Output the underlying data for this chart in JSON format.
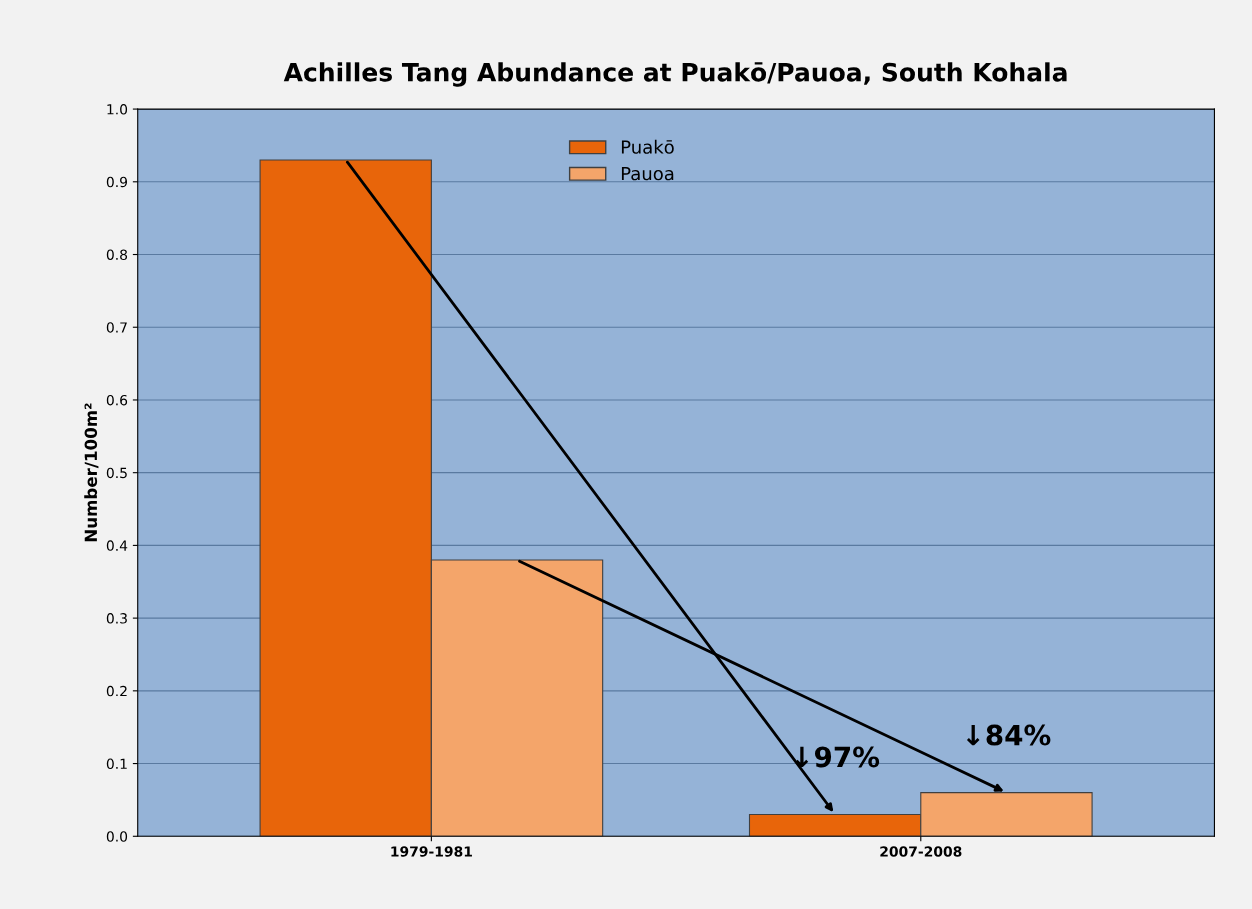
{
  "chart_data": {
    "type": "bar",
    "title": "Achilles Tang Abundance at Puakō/Pauoa, South Kohala",
    "categories": [
      "1979-1981",
      "2007-2008"
    ],
    "series": [
      {
        "name": "Puakō",
        "color": "#e8650a",
        "values": [
          0.93,
          0.03
        ]
      },
      {
        "name": "Pauoa",
        "color": "#f4a56a",
        "values": [
          0.38,
          0.06
        ]
      }
    ],
    "ylabel": "Number/100m²",
    "ylim": [
      0,
      1.0
    ],
    "yticks": [
      {
        "value": 0,
        "label": "0.0"
      },
      {
        "value": 0.1,
        "label": "0.1"
      },
      {
        "value": 0.2,
        "label": "0.2"
      },
      {
        "value": 0.3,
        "label": "0.3"
      },
      {
        "value": 0.4,
        "label": "0.4"
      },
      {
        "value": 0.5,
        "label": "0.5"
      },
      {
        "value": 0.6,
        "label": "0.6"
      },
      {
        "value": 0.7,
        "label": "0.7"
      },
      {
        "value": 0.8,
        "label": "0.8"
      },
      {
        "value": 0.9,
        "label": "0.9"
      },
      {
        "value": 1.0,
        "label": "1.0"
      }
    ],
    "annotations": [
      {
        "text": "↓97%",
        "x": "2007-2008",
        "y": 0.03
      },
      {
        "text": "↓84%",
        "x": "2007-2008",
        "y": 0.06
      }
    ],
    "grid": "y",
    "legend": "top"
  }
}
